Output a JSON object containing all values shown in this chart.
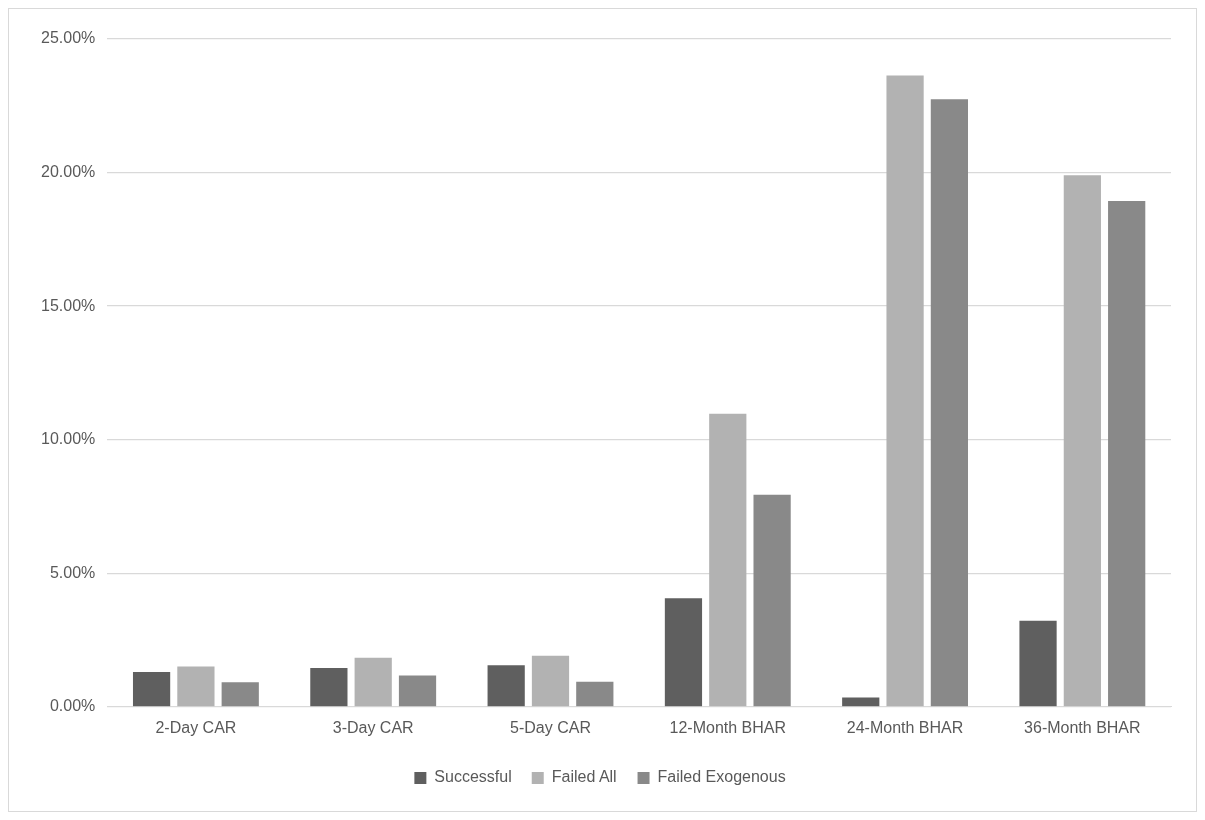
{
  "chart_data": {
    "type": "bar",
    "categories": [
      "2-Day CAR",
      "3-Day CAR",
      "5-Day CAR",
      "12-Month BHAR",
      "24-Month BHAR",
      "36-Month BHAR"
    ],
    "series": [
      {
        "name": "Successful",
        "color": "#5f5f5f",
        "values": [
          1.3,
          1.45,
          1.56,
          4.06,
          0.35,
          3.22
        ]
      },
      {
        "name": "Failed All",
        "color": "#b2b2b2",
        "values": [
          1.51,
          1.84,
          1.91,
          10.97,
          23.63,
          19.9
        ]
      },
      {
        "name": "Failed Exogenous",
        "color": "#898989",
        "values": [
          0.92,
          1.17,
          0.94,
          7.94,
          22.74,
          18.94
        ]
      }
    ],
    "ylim": [
      0,
      25
    ],
    "yticks": [
      {
        "value": 0,
        "label": "0.00%"
      },
      {
        "value": 5,
        "label": "5.00%"
      },
      {
        "value": 10,
        "label": "10.00%"
      },
      {
        "value": 15,
        "label": "15.00%"
      },
      {
        "value": 20,
        "label": "20.00%"
      },
      {
        "value": 25,
        "label": "25.00%"
      }
    ],
    "grid": "y",
    "legend": "bottom"
  }
}
